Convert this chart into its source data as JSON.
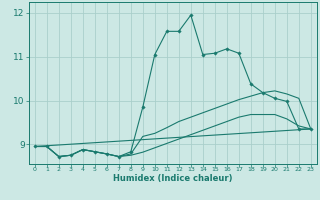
{
  "bg_color": "#cce8e4",
  "grid_color": "#aacfcb",
  "line_color": "#1a7a6e",
  "xlabel": "Humidex (Indice chaleur)",
  "xlim": [
    -0.5,
    23.5
  ],
  "ylim": [
    8.55,
    12.25
  ],
  "yticks": [
    9,
    10,
    11,
    12
  ],
  "xticks": [
    0,
    1,
    2,
    3,
    4,
    5,
    6,
    7,
    8,
    9,
    10,
    11,
    12,
    13,
    14,
    15,
    16,
    17,
    18,
    19,
    20,
    21,
    22,
    23
  ],
  "lines": [
    {
      "x": [
        0,
        1,
        2,
        3,
        4,
        5,
        6,
        7,
        8,
        9,
        10,
        11,
        12,
        13,
        14,
        15,
        16,
        17,
        18,
        19,
        20,
        21,
        22,
        23
      ],
      "y": [
        8.95,
        8.95,
        8.72,
        8.75,
        8.88,
        8.83,
        8.78,
        8.72,
        8.83,
        9.85,
        11.05,
        11.58,
        11.58,
        11.95,
        11.05,
        11.08,
        11.18,
        11.08,
        10.38,
        10.18,
        10.05,
        9.98,
        9.35,
        9.35
      ],
      "marker": true
    },
    {
      "x": [
        0,
        1,
        2,
        3,
        4,
        5,
        6,
        7,
        8,
        9,
        10,
        11,
        12,
        13,
        14,
        15,
        16,
        17,
        18,
        19,
        20,
        21,
        22,
        23
      ],
      "y": [
        8.95,
        8.95,
        8.72,
        8.75,
        8.88,
        8.83,
        8.78,
        8.72,
        8.78,
        9.18,
        9.25,
        9.38,
        9.52,
        9.62,
        9.72,
        9.82,
        9.92,
        10.02,
        10.1,
        10.18,
        10.22,
        10.15,
        10.05,
        9.35
      ],
      "marker": false
    },
    {
      "x": [
        0,
        1,
        2,
        3,
        4,
        5,
        6,
        7,
        8,
        9,
        10,
        11,
        12,
        13,
        14,
        15,
        16,
        17,
        18,
        19,
        20,
        21,
        22,
        23
      ],
      "y": [
        8.95,
        8.95,
        8.72,
        8.75,
        8.88,
        8.83,
        8.78,
        8.72,
        8.75,
        8.82,
        8.92,
        9.02,
        9.12,
        9.22,
        9.32,
        9.42,
        9.52,
        9.62,
        9.68,
        9.68,
        9.68,
        9.58,
        9.42,
        9.35
      ],
      "marker": false
    },
    {
      "x": [
        0,
        23
      ],
      "y": [
        8.95,
        9.35
      ],
      "marker": false
    }
  ]
}
